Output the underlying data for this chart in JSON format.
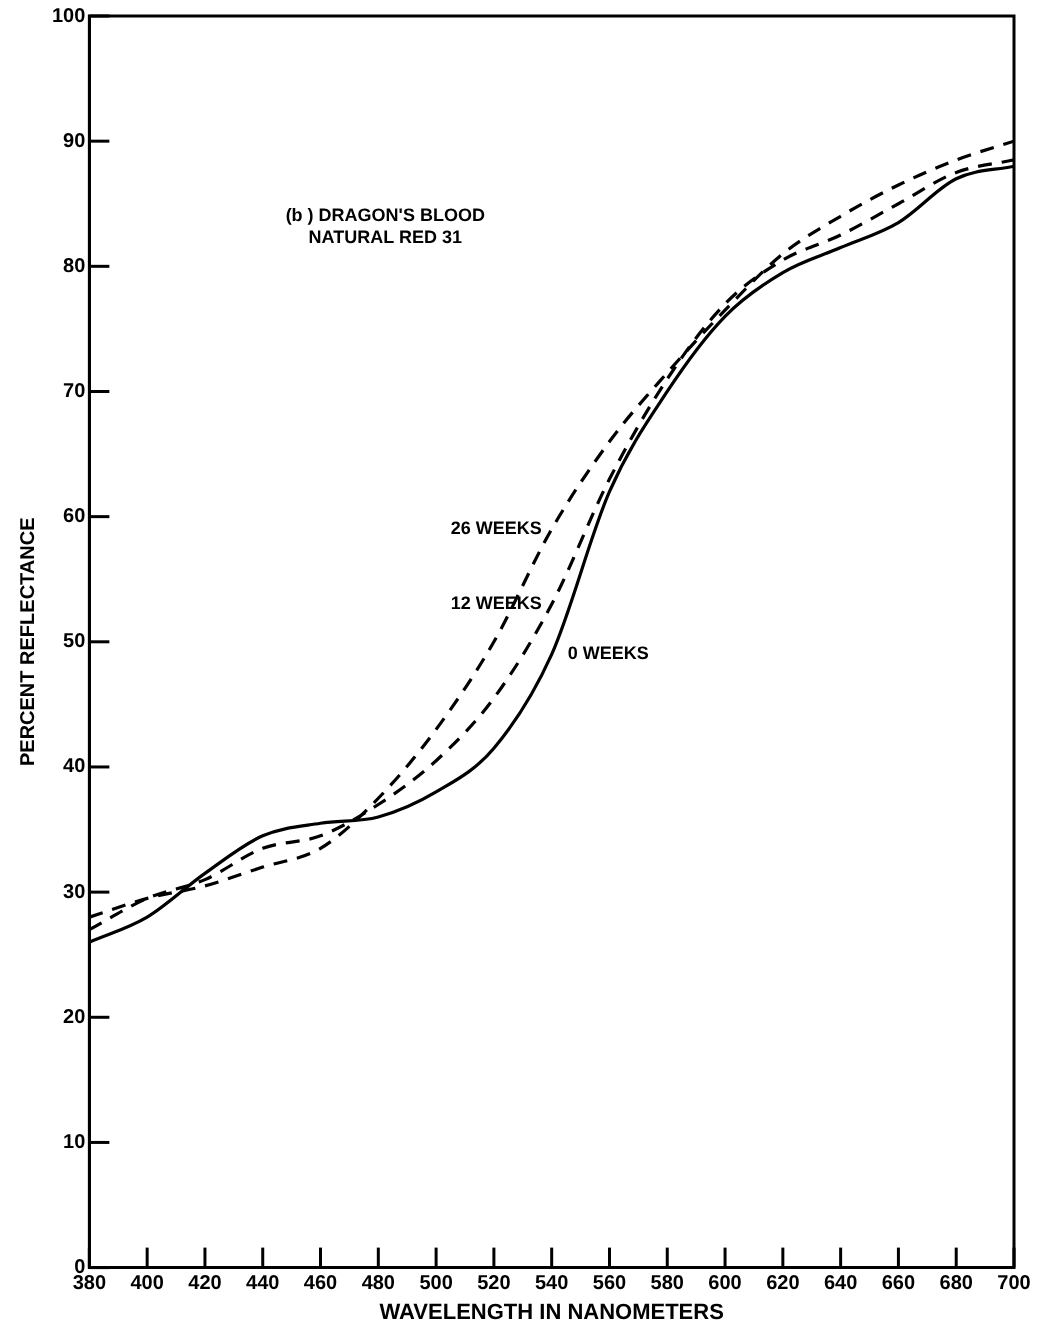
{
  "chart_data": {
    "type": "line",
    "xlabel": "WAVELENGTH IN NANOMETERS",
    "ylabel": "PERCENT REFLECTANCE",
    "x": [
      380,
      400,
      420,
      440,
      460,
      480,
      500,
      520,
      540,
      560,
      580,
      600,
      620,
      640,
      660,
      680,
      700
    ],
    "series": [
      {
        "name": "0 WEEKS",
        "color": "#000000",
        "line_style": "solid",
        "values": [
          26,
          28,
          31.5,
          34.5,
          35.5,
          36,
          38,
          41.5,
          49,
          62,
          70,
          76,
          79.5,
          81.5,
          83.5,
          87,
          88
        ]
      },
      {
        "name": "12 WEEKS",
        "color": "#000000",
        "line_style": "dashed",
        "values": [
          27,
          29.5,
          31,
          33.5,
          34.5,
          37,
          40.5,
          45.5,
          53,
          63,
          71,
          77,
          80.5,
          82.5,
          85,
          87.5,
          88.5
        ]
      },
      {
        "name": "26 WEEKS",
        "color": "#000000",
        "line_style": "dashed",
        "values": [
          28,
          29.5,
          30.5,
          32,
          33.5,
          37.5,
          43,
          50,
          59,
          66,
          71.5,
          76.5,
          81,
          84,
          86.5,
          88.5,
          90
        ]
      }
    ],
    "xlim": [
      380,
      700
    ],
    "xticks": [
      380,
      400,
      420,
      440,
      460,
      480,
      500,
      520,
      540,
      560,
      580,
      600,
      620,
      640,
      660,
      680,
      700
    ],
    "ylim": [
      0,
      100
    ],
    "yticks": [
      0,
      10,
      20,
      30,
      40,
      50,
      60,
      70,
      80,
      90,
      100
    ],
    "grid": false,
    "legend": false,
    "marker": "none",
    "annotations": [
      "(b ) DRAGON'S BLOOD\nNATURAL RED 31"
    ]
  }
}
